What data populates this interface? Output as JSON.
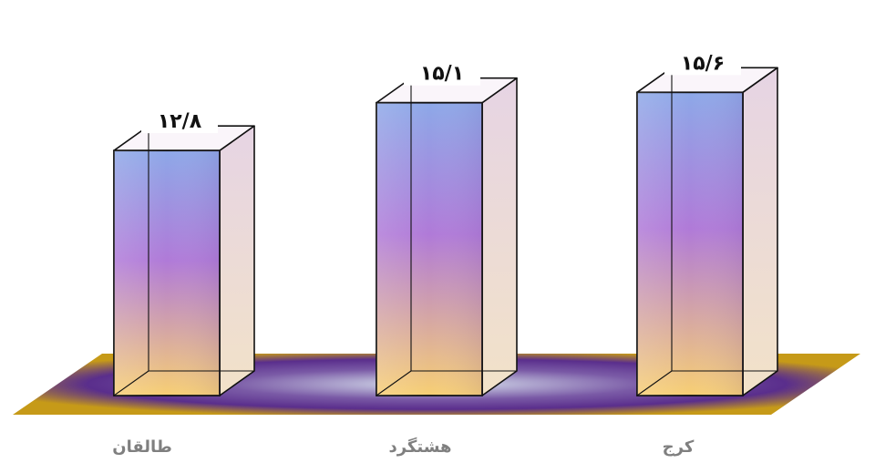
{
  "chart_data": {
    "type": "bar",
    "categories": [
      "طالقان",
      "هشتگرد",
      "کرج"
    ],
    "values": [
      12.8,
      15.1,
      15.6
    ],
    "value_labels": [
      "۱۲/۸",
      "۱۵/۱",
      "۱۵/۶"
    ],
    "title": "",
    "xlabel": "",
    "ylabel": "",
    "ylim": [
      0,
      16
    ],
    "grid": false,
    "legend": "none",
    "style": "3d-glass-columns",
    "colors": {
      "column_top": "#8da8e8",
      "column_mid": "#b07ad8",
      "column_bottom": "#f7cf74",
      "side_face": "#e6d4e4",
      "floor_center": "#d8e2ee",
      "floor_mid": "#5a2e8c",
      "floor_edge": "#c69a18",
      "category_label": "#7f7f7f",
      "value_label": "#111111"
    }
  }
}
